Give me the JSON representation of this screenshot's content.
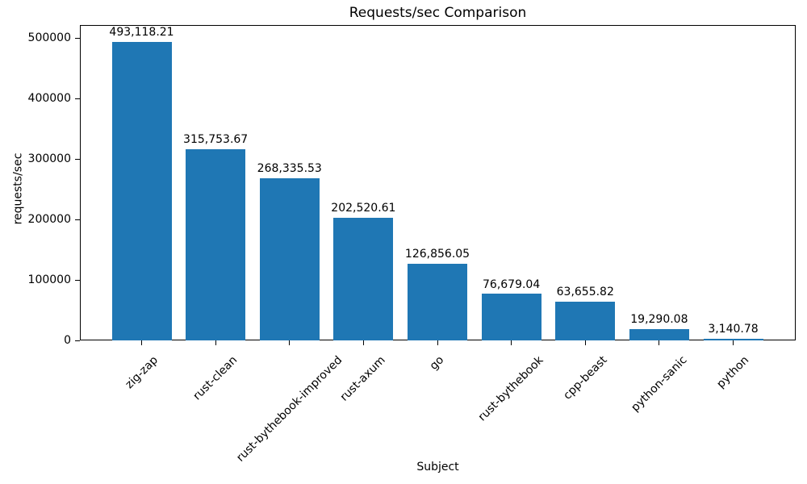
{
  "figure": {
    "background": "#ffffff",
    "axis_color": "#000000",
    "text_color": "#000000"
  },
  "chart_data": {
    "type": "bar",
    "title": "Requests/sec Comparison",
    "xlabel": "Subject",
    "ylabel": "requests/sec",
    "categories": [
      "zig-zap",
      "rust-clean",
      "rust-bythebook-improved",
      "rust-axum",
      "go",
      "rust-bythebook",
      "cpp-beast",
      "python-sanic",
      "python"
    ],
    "values": [
      493118.21,
      315753.67,
      268335.53,
      202520.61,
      126856.05,
      76679.04,
      63655.82,
      19290.08,
      3140.78
    ],
    "value_labels": [
      "493,118.21",
      "315,753.67",
      "268,335.53",
      "202,520.61",
      "126,856.05",
      "76,679.04",
      "63,655.82",
      "19,290.08",
      "3,140.78"
    ],
    "yticks": [
      0,
      100000,
      200000,
      300000,
      400000,
      500000
    ],
    "ytick_labels": [
      "0",
      "100000",
      "200000",
      "300000",
      "400000",
      "500000"
    ],
    "ylim": [
      0,
      522000
    ],
    "grid": false,
    "legend_position": "none",
    "bar_color": "#1f77b4",
    "xtick_rotation_deg": 45
  }
}
